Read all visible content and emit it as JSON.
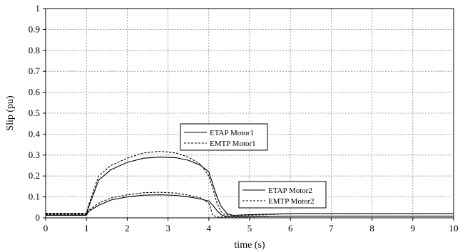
{
  "chart_data": {
    "type": "line",
    "xlabel": "time (s)",
    "ylabel": "Slip (pu)",
    "xlim": [
      0,
      10
    ],
    "ylim": [
      0,
      1
    ],
    "x_ticks": [
      "0",
      "1",
      "2",
      "3",
      "4",
      "5",
      "6",
      "7",
      "8",
      "9",
      "10"
    ],
    "y_ticks": [
      "0",
      "0.1",
      "0.2",
      "0.3",
      "0.4",
      "0.5",
      "0.6",
      "0.7",
      "0.8",
      "0.9",
      "1"
    ],
    "grid": true,
    "series": [
      {
        "name": "ETAP Motor1",
        "style": "solid",
        "x": [
          0,
          1.0,
          1.05,
          1.3,
          1.6,
          2.0,
          2.4,
          2.8,
          3.2,
          3.5,
          3.8,
          4.0,
          4.1,
          4.2,
          4.3,
          4.45,
          4.6,
          5.0,
          6.0,
          7.0,
          8.0,
          10.0
        ],
        "y": [
          0.018,
          0.018,
          0.05,
          0.18,
          0.23,
          0.265,
          0.285,
          0.29,
          0.287,
          0.275,
          0.25,
          0.22,
          0.16,
          0.1,
          0.055,
          0.02,
          0.012,
          0.015,
          0.02,
          0.02,
          0.02,
          0.02
        ]
      },
      {
        "name": "EMTP Motor1",
        "style": "dashed",
        "x": [
          0,
          1.0,
          1.05,
          1.3,
          1.6,
          2.0,
          2.4,
          2.8,
          3.2,
          3.5,
          3.8,
          4.0,
          4.1,
          4.2,
          4.3,
          4.4,
          4.6,
          5.0,
          6.0,
          7.0,
          8.0,
          10.0
        ],
        "y": [
          0.022,
          0.022,
          0.06,
          0.2,
          0.25,
          0.285,
          0.31,
          0.318,
          0.31,
          0.29,
          0.255,
          0.2,
          0.14,
          0.07,
          0.03,
          0.015,
          0.01,
          0.012,
          0.02,
          0.02,
          0.02,
          0.02
        ]
      },
      {
        "name": "ETAP Motor2",
        "style": "solid",
        "x": [
          0,
          1.0,
          1.05,
          1.3,
          1.6,
          2.0,
          2.4,
          2.8,
          3.2,
          3.5,
          3.8,
          4.0,
          4.1,
          4.2,
          4.3,
          4.45,
          4.6,
          5.0,
          6.0,
          7.0,
          8.0,
          10.0
        ],
        "y": [
          0.012,
          0.012,
          0.03,
          0.06,
          0.085,
          0.1,
          0.108,
          0.11,
          0.107,
          0.1,
          0.09,
          0.08,
          0.06,
          0.035,
          0.015,
          0.005,
          0.005,
          0.005,
          0.008,
          0.008,
          0.008,
          0.008
        ]
      },
      {
        "name": "EMTP Motor2",
        "style": "dashed",
        "x": [
          0,
          1.0,
          1.05,
          1.3,
          1.6,
          2.0,
          2.4,
          2.8,
          3.2,
          3.5,
          3.8,
          4.0,
          4.05,
          4.1,
          4.2,
          4.3,
          4.5,
          5.0,
          6.0,
          7.0,
          8.0,
          10.0
        ],
        "y": [
          0.016,
          0.016,
          0.035,
          0.07,
          0.095,
          0.11,
          0.12,
          0.122,
          0.118,
          0.108,
          0.095,
          0.07,
          0.04,
          0.012,
          0.004,
          0.004,
          0.004,
          0.004,
          0.008,
          0.008,
          0.008,
          0.008
        ]
      }
    ],
    "legends": [
      {
        "position": "center",
        "entries": [
          "ETAP Motor1",
          "EMTP Motor1"
        ]
      },
      {
        "position": "lower-right",
        "entries": [
          "ETAP Motor2",
          "EMTP Motor2"
        ]
      }
    ]
  }
}
